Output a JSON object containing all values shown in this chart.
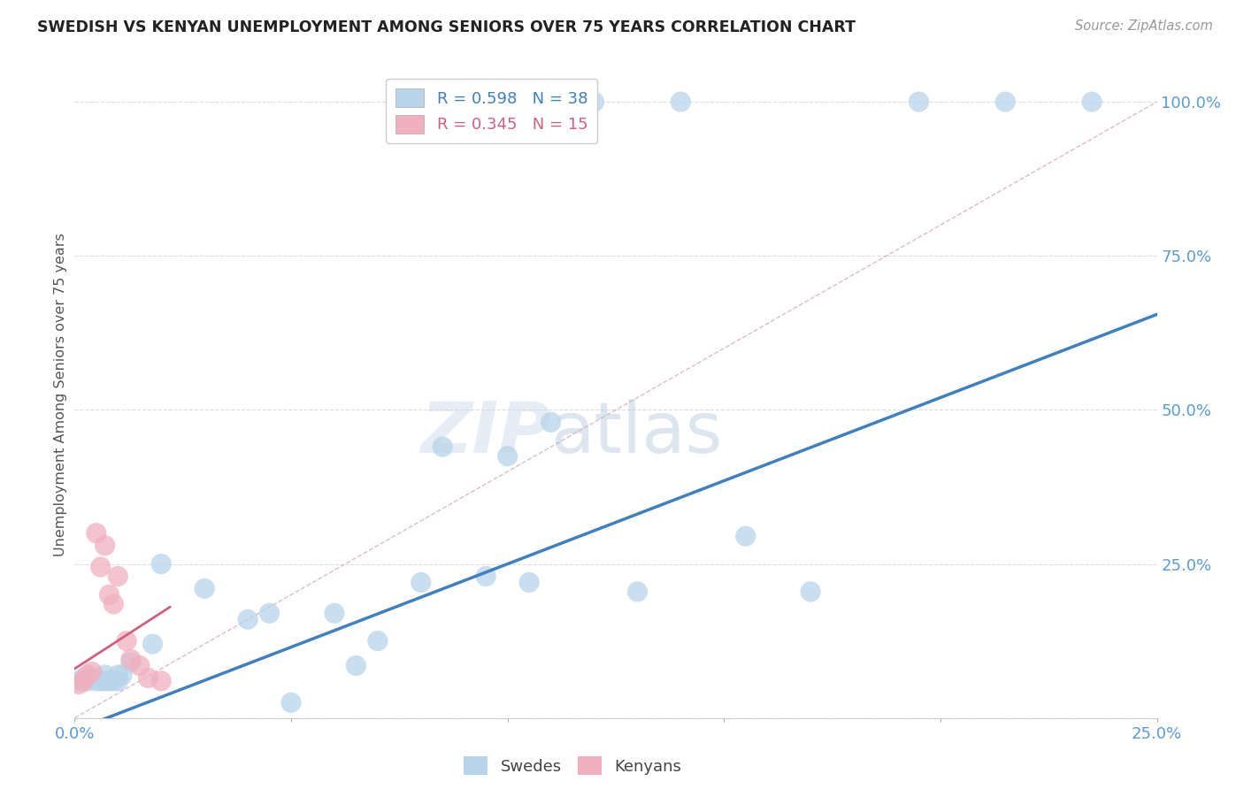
{
  "title": "SWEDISH VS KENYAN UNEMPLOYMENT AMONG SENIORS OVER 75 YEARS CORRELATION CHART",
  "source": "Source: ZipAtlas.com",
  "ylabel": "Unemployment Among Seniors over 75 years",
  "xlim": [
    0.0,
    0.25
  ],
  "ylim": [
    0.0,
    1.05
  ],
  "swede_R": 0.598,
  "swede_N": 38,
  "kenyan_R": 0.345,
  "kenyan_N": 15,
  "swede_color": "#b8d4ea",
  "kenyan_color": "#f0b0c0",
  "swede_line_color": "#4080c0",
  "kenyan_line_color": "#d06080",
  "diag_color": "#d0a0b0",
  "background_color": "#ffffff",
  "watermark_zip": "ZIP",
  "watermark_atlas": "atlas",
  "swede_x": [
    0.001,
    0.002,
    0.003,
    0.004,
    0.005,
    0.005,
    0.006,
    0.007,
    0.007,
    0.008,
    0.009,
    0.01,
    0.01,
    0.011,
    0.013,
    0.018,
    0.02,
    0.03,
    0.04,
    0.045,
    0.05,
    0.06,
    0.065,
    0.07,
    0.08,
    0.085,
    0.095,
    0.1,
    0.105,
    0.11,
    0.12,
    0.13,
    0.14,
    0.155,
    0.17,
    0.195,
    0.215,
    0.235
  ],
  "swede_y": [
    0.06,
    0.065,
    0.06,
    0.065,
    0.06,
    0.065,
    0.06,
    0.06,
    0.07,
    0.06,
    0.06,
    0.07,
    0.06,
    0.07,
    0.09,
    0.12,
    0.25,
    0.21,
    0.16,
    0.17,
    0.025,
    0.17,
    0.085,
    0.125,
    0.22,
    0.44,
    0.23,
    0.425,
    0.22,
    0.48,
    1.0,
    0.205,
    1.0,
    0.295,
    0.205,
    1.0,
    1.0,
    1.0
  ],
  "kenyan_x": [
    0.001,
    0.002,
    0.003,
    0.004,
    0.005,
    0.006,
    0.007,
    0.008,
    0.009,
    0.01,
    0.012,
    0.013,
    0.015,
    0.017,
    0.02
  ],
  "kenyan_y": [
    0.055,
    0.06,
    0.07,
    0.075,
    0.3,
    0.245,
    0.28,
    0.2,
    0.185,
    0.23,
    0.125,
    0.095,
    0.085,
    0.065,
    0.06
  ],
  "swede_line_x0": 0.0,
  "swede_line_y0": -0.02,
  "swede_line_x1": 0.25,
  "swede_line_y1": 0.655,
  "kenyan_line_x0": 0.0,
  "kenyan_line_y0": 0.08,
  "kenyan_line_x1": 0.022,
  "kenyan_line_y1": 0.18
}
